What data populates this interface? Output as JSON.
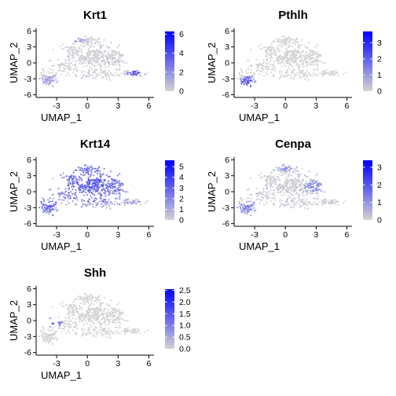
{
  "colors": {
    "low": "#d3d3d3",
    "high": "#0000ff"
  },
  "chart_data": [
    {
      "type": "scatter",
      "title": "Krt1",
      "xlabel": "UMAP_1",
      "ylabel": "UMAP_2",
      "xlim": [
        -5,
        6.5
      ],
      "ylim": [
        -6.5,
        6.5
      ],
      "xticks": [
        -3,
        0,
        3,
        6
      ],
      "yticks": [
        -6,
        -3,
        0,
        3,
        6
      ],
      "xtick_labels": [
        "-3",
        "0",
        "3",
        "6"
      ],
      "ytick_labels": [
        "-6",
        "-3",
        "0",
        "3",
        "6"
      ],
      "legend": {
        "min": 0,
        "max": 6.3,
        "ticks": [
          0,
          2,
          4,
          6
        ],
        "labels": [
          "0",
          "2",
          "4",
          "6"
        ]
      },
      "hot_spots": [
        {
          "x": 4.8,
          "y": -2.0,
          "r": 1.0,
          "level": 0.95
        },
        {
          "x": -1.1,
          "y": 4.5,
          "r": 0.9,
          "level": 0.6
        },
        {
          "x": -3.8,
          "y": -3.3,
          "r": 1.2,
          "level": 0.35
        }
      ],
      "base_level": 0.12
    },
    {
      "type": "scatter",
      "title": "Pthlh",
      "xlabel": "UMAP_1",
      "ylabel": "UMAP_2",
      "xlim": [
        -5,
        6.5
      ],
      "ylim": [
        -6.5,
        6.5
      ],
      "xticks": [
        -3,
        0,
        3,
        6
      ],
      "yticks": [
        -6,
        -3,
        0,
        3,
        6
      ],
      "xtick_labels": [
        "-3",
        "0",
        "3",
        "6"
      ],
      "ytick_labels": [
        "-6",
        "-3",
        "0",
        "3",
        "6"
      ],
      "legend": {
        "min": 0,
        "max": 3.7,
        "ticks": [
          0,
          1,
          2,
          3
        ],
        "labels": [
          "0",
          "1",
          "2",
          "3"
        ]
      },
      "hot_spots": [
        {
          "x": -3.6,
          "y": -3.8,
          "r": 1.3,
          "level": 0.9
        }
      ],
      "base_level": 0.02
    },
    {
      "type": "scatter",
      "title": "Krt14",
      "xlabel": "UMAP_1",
      "ylabel": "UMAP_2",
      "xlim": [
        -5,
        6.5
      ],
      "ylim": [
        -6.5,
        6.5
      ],
      "xticks": [
        -3,
        0,
        3,
        6
      ],
      "yticks": [
        -6,
        -3,
        0,
        3,
        6
      ],
      "xtick_labels": [
        "-3",
        "0",
        "3",
        "6"
      ],
      "ytick_labels": [
        "-6",
        "-3",
        "0",
        "3",
        "6"
      ],
      "legend": {
        "min": 0,
        "max": 5.6,
        "ticks": [
          0,
          1,
          2,
          3,
          4,
          5
        ],
        "labels": [
          "0",
          "1",
          "2",
          "3",
          "4",
          "5"
        ]
      },
      "hot_spots": [
        {
          "x": 0.5,
          "y": 1.5,
          "r": 4.0,
          "level": 0.8
        },
        {
          "x": -3.8,
          "y": -2.5,
          "r": 1.5,
          "level": 0.75
        }
      ],
      "base_level": 0.55
    },
    {
      "type": "scatter",
      "title": "Cenpa",
      "xlabel": "UMAP_1",
      "ylabel": "UMAP_2",
      "xlim": [
        -5,
        6.5
      ],
      "ylim": [
        -6.5,
        6.5
      ],
      "xticks": [
        -3,
        0,
        3,
        6
      ],
      "yticks": [
        -6,
        -3,
        0,
        3,
        6
      ],
      "xtick_labels": [
        "-3",
        "0",
        "3",
        "6"
      ],
      "ytick_labels": [
        "-6",
        "-3",
        "0",
        "3",
        "6"
      ],
      "legend": {
        "min": 0,
        "max": 3.4,
        "ticks": [
          0,
          1,
          2,
          3
        ],
        "labels": [
          "0",
          "1",
          "2",
          "3"
        ]
      },
      "hot_spots": [
        {
          "x": 3.0,
          "y": 1.0,
          "r": 1.2,
          "level": 0.6
        },
        {
          "x": -3.6,
          "y": -3.0,
          "r": 1.3,
          "level": 0.55
        },
        {
          "x": 0.0,
          "y": 4.5,
          "r": 0.8,
          "level": 0.5
        }
      ],
      "base_level": 0.18
    },
    {
      "type": "scatter",
      "title": "Shh",
      "xlabel": "UMAP_1",
      "ylabel": "UMAP_2",
      "xlim": [
        -5,
        6.5
      ],
      "ylim": [
        -6.5,
        6.5
      ],
      "xticks": [
        -3,
        0,
        3,
        6
      ],
      "yticks": [
        -6,
        -3,
        0,
        3,
        6
      ],
      "xtick_labels": [
        "-3",
        "0",
        "3",
        "6"
      ],
      "ytick_labels": [
        "-6",
        "-3",
        "0",
        "3",
        "6"
      ],
      "legend": {
        "min": 0,
        "max": 2.55,
        "ticks": [
          0,
          0.5,
          1.0,
          1.5,
          2.0,
          2.5
        ],
        "labels": [
          "0.0",
          "0.5",
          "1.0",
          "1.5",
          "2.0",
          "2.5"
        ]
      },
      "hot_spots": [
        {
          "x": -3.3,
          "y": -0.4,
          "r": 0.9,
          "level": 0.85
        }
      ],
      "base_level": 0.01
    }
  ]
}
